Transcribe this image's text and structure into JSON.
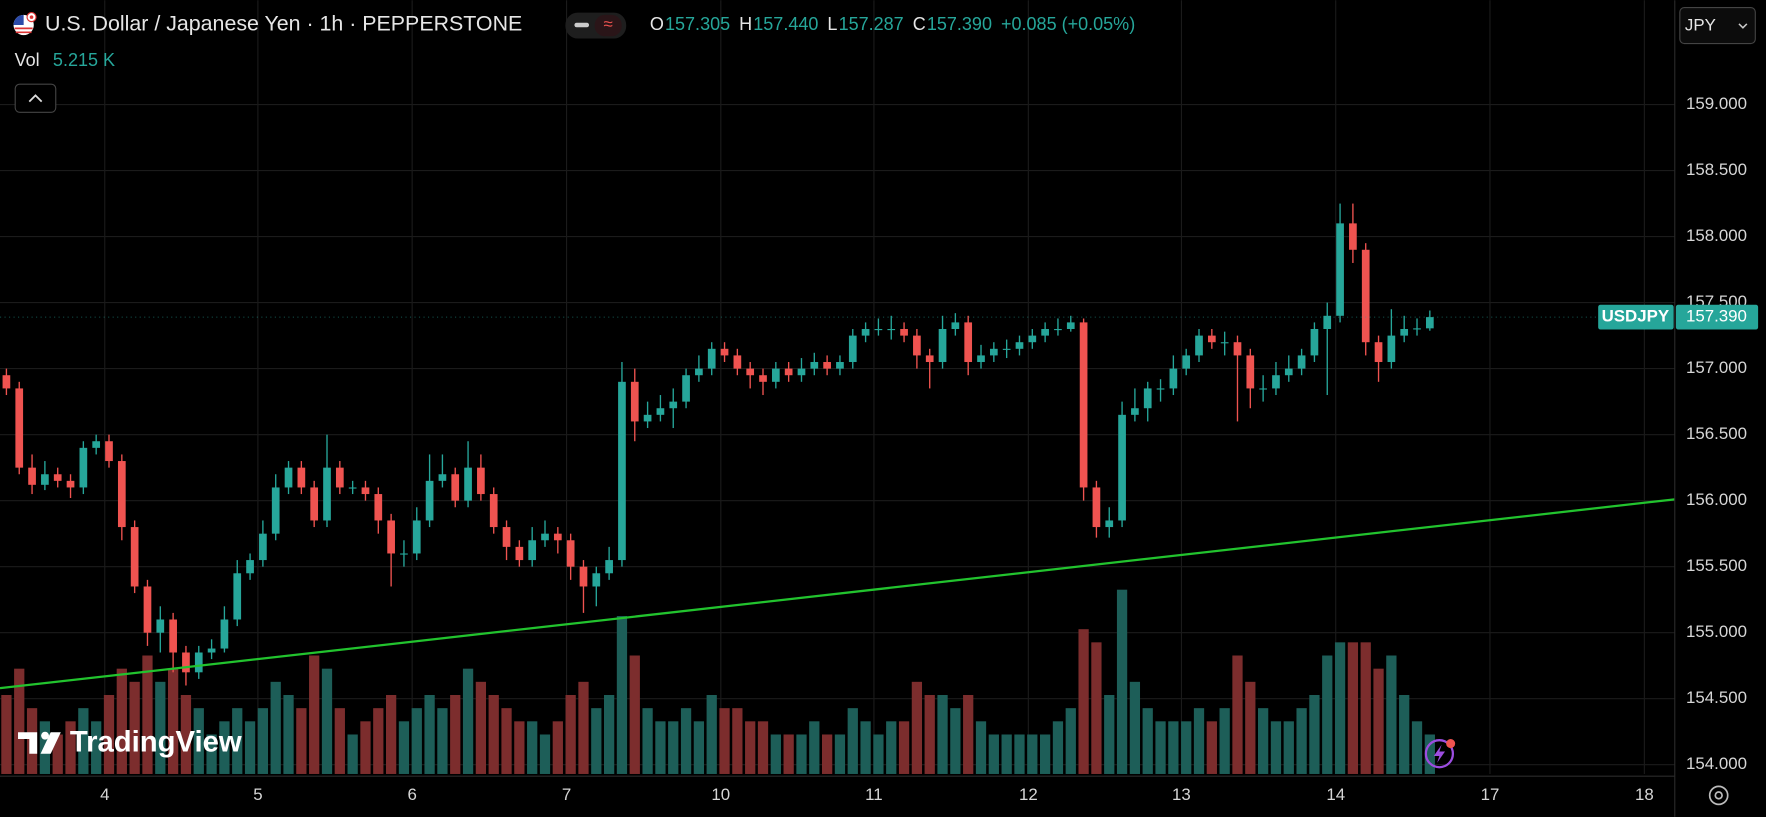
{
  "chart_data": {
    "type": "candlestick",
    "title": "U.S. Dollar / Japanese Yen · 1h · PEPPERSTONE",
    "ohlc_legend": [
      {
        "key": "O",
        "value": "157.305"
      },
      {
        "key": "H",
        "value": "157.440"
      },
      {
        "key": "L",
        "value": "157.287"
      },
      {
        "key": "C",
        "value": "157.390"
      }
    ],
    "change": "+0.085 (+0.05%)",
    "volume_label": "Vol",
    "volume_value": "5.215 K",
    "currency": "JPY",
    "symbol": "USDJPY",
    "last_price_label": "157.390",
    "brand": "TradingView",
    "up_color": "#26a69a",
    "down_color": "#ef5350",
    "volume_up_color": "#1d5e58",
    "volume_down_color": "#7c2d2d",
    "grid": true,
    "xlim": [
      0,
      130.6
    ],
    "xticks": [
      {
        "value": 8.17,
        "label": "4"
      },
      {
        "value": 20.11,
        "label": "5"
      },
      {
        "value": 32.14,
        "label": "6"
      },
      {
        "value": 44.18,
        "label": "7"
      },
      {
        "value": 56.21,
        "label": "10"
      },
      {
        "value": 68.15,
        "label": "11"
      },
      {
        "value": 80.19,
        "label": "12"
      },
      {
        "value": 92.13,
        "label": "13"
      },
      {
        "value": 104.16,
        "label": "14"
      },
      {
        "value": 116.19,
        "label": "17"
      },
      {
        "value": 128.23,
        "label": "18"
      }
    ],
    "ylim": [
      153.93,
      159.79
    ],
    "yticks": [
      {
        "value": 154,
        "label": "154.000"
      },
      {
        "value": 154.5,
        "label": "154.500"
      },
      {
        "value": 155,
        "label": "155.000"
      },
      {
        "value": 155.5,
        "label": "155.500"
      },
      {
        "value": 156,
        "label": "156.000"
      },
      {
        "value": 156.5,
        "label": "156.500"
      },
      {
        "value": 157,
        "label": "157.000"
      },
      {
        "value": 157.5,
        "label": "157.500"
      },
      {
        "value": 158,
        "label": "158.000"
      },
      {
        "value": 158.5,
        "label": "158.500"
      },
      {
        "value": 159,
        "label": "159.000"
      }
    ],
    "volume_lim": [
      0,
      16
    ],
    "trendline": {
      "color": "#22c32e",
      "x": [
        0,
        130.6
      ],
      "values": [
        154.58,
        156.01
      ]
    },
    "candles": [
      [
        156.95,
        157.0,
        156.8,
        156.85
      ],
      [
        156.85,
        156.9,
        156.2,
        156.25
      ],
      [
        156.25,
        156.35,
        156.05,
        156.12
      ],
      [
        156.12,
        156.3,
        156.08,
        156.2
      ],
      [
        156.2,
        156.25,
        156.1,
        156.15
      ],
      [
        156.15,
        156.2,
        156.02,
        156.1
      ],
      [
        156.1,
        156.45,
        156.05,
        156.4
      ],
      [
        156.4,
        156.5,
        156.35,
        156.45
      ],
      [
        156.45,
        156.5,
        156.25,
        156.3
      ],
      [
        156.3,
        156.35,
        155.7,
        155.8
      ],
      [
        155.8,
        155.85,
        155.3,
        155.35
      ],
      [
        155.35,
        155.4,
        154.9,
        155.0
      ],
      [
        155.0,
        155.2,
        154.85,
        155.1
      ],
      [
        155.1,
        155.15,
        154.7,
        154.85
      ],
      [
        154.85,
        154.9,
        154.6,
        154.7
      ],
      [
        154.7,
        154.9,
        154.65,
        154.85
      ],
      [
        154.85,
        154.95,
        154.8,
        154.88
      ],
      [
        154.88,
        155.2,
        154.85,
        155.1
      ],
      [
        155.1,
        155.55,
        155.05,
        155.45
      ],
      [
        155.45,
        155.6,
        155.4,
        155.55
      ],
      [
        155.55,
        155.85,
        155.5,
        155.75
      ],
      [
        155.75,
        156.2,
        155.7,
        156.1
      ],
      [
        156.1,
        156.3,
        156.05,
        156.25
      ],
      [
        156.25,
        156.3,
        156.05,
        156.1
      ],
      [
        156.1,
        156.15,
        155.8,
        155.85
      ],
      [
        155.85,
        156.5,
        155.8,
        156.25
      ],
      [
        156.25,
        156.3,
        156.05,
        156.1
      ],
      [
        156.1,
        156.15,
        156.05,
        156.1
      ],
      [
        156.1,
        156.15,
        156.0,
        156.05
      ],
      [
        156.05,
        156.1,
        155.75,
        155.85
      ],
      [
        155.85,
        155.9,
        155.35,
        155.6
      ],
      [
        155.6,
        155.7,
        155.5,
        155.6
      ],
      [
        155.6,
        155.95,
        155.55,
        155.85
      ],
      [
        155.85,
        156.35,
        155.8,
        156.15
      ],
      [
        156.15,
        156.35,
        156.1,
        156.2
      ],
      [
        156.2,
        156.25,
        155.95,
        156.0
      ],
      [
        156.0,
        156.45,
        155.95,
        156.25
      ],
      [
        156.25,
        156.35,
        156.0,
        156.05
      ],
      [
        156.05,
        156.1,
        155.75,
        155.8
      ],
      [
        155.8,
        155.85,
        155.55,
        155.65
      ],
      [
        155.65,
        155.7,
        155.5,
        155.55
      ],
      [
        155.55,
        155.8,
        155.5,
        155.7
      ],
      [
        155.7,
        155.85,
        155.65,
        155.75
      ],
      [
        155.75,
        155.8,
        155.6,
        155.7
      ],
      [
        155.7,
        155.75,
        155.4,
        155.5
      ],
      [
        155.5,
        155.55,
        155.15,
        155.35
      ],
      [
        155.35,
        155.5,
        155.2,
        155.45
      ],
      [
        155.45,
        155.65,
        155.4,
        155.55
      ],
      [
        155.55,
        157.05,
        155.5,
        156.9
      ],
      [
        156.9,
        157.0,
        156.45,
        156.6
      ],
      [
        156.6,
        156.75,
        156.55,
        156.65
      ],
      [
        156.65,
        156.8,
        156.6,
        156.7
      ],
      [
        156.7,
        156.85,
        156.55,
        156.75
      ],
      [
        156.75,
        157.0,
        156.7,
        156.95
      ],
      [
        156.95,
        157.1,
        156.9,
        157.0
      ],
      [
        157.0,
        157.2,
        156.95,
        157.15
      ],
      [
        157.15,
        157.2,
        157.05,
        157.1
      ],
      [
        157.1,
        157.15,
        156.95,
        157.0
      ],
      [
        157.0,
        157.05,
        156.85,
        156.95
      ],
      [
        156.95,
        157.0,
        156.8,
        156.9
      ],
      [
        156.9,
        157.05,
        156.85,
        157.0
      ],
      [
        157.0,
        157.05,
        156.9,
        156.95
      ],
      [
        156.95,
        157.08,
        156.9,
        157.0
      ],
      [
        157.0,
        157.12,
        156.95,
        157.05
      ],
      [
        157.05,
        157.1,
        156.95,
        157.0
      ],
      [
        157.0,
        157.1,
        156.95,
        157.05
      ],
      [
        157.05,
        157.3,
        157.0,
        157.25
      ],
      [
        157.25,
        157.35,
        157.2,
        157.3
      ],
      [
        157.3,
        157.38,
        157.25,
        157.3
      ],
      [
        157.3,
        157.4,
        157.22,
        157.3
      ],
      [
        157.3,
        157.35,
        157.2,
        157.25
      ],
      [
        157.25,
        157.3,
        157.0,
        157.1
      ],
      [
        157.1,
        157.15,
        156.85,
        157.05
      ],
      [
        157.05,
        157.4,
        157.0,
        157.3
      ],
      [
        157.3,
        157.42,
        157.25,
        157.35
      ],
      [
        157.35,
        157.4,
        156.95,
        157.05
      ],
      [
        157.05,
        157.18,
        157.0,
        157.1
      ],
      [
        157.1,
        157.2,
        157.05,
        157.15
      ],
      [
        157.15,
        157.22,
        157.08,
        157.15
      ],
      [
        157.15,
        157.25,
        157.1,
        157.2
      ],
      [
        157.2,
        157.3,
        157.15,
        157.25
      ],
      [
        157.25,
        157.35,
        157.2,
        157.3
      ],
      [
        157.3,
        157.38,
        157.25,
        157.3
      ],
      [
        157.3,
        157.4,
        157.28,
        157.35
      ],
      [
        157.35,
        157.38,
        156.0,
        156.1
      ],
      [
        156.1,
        156.15,
        155.72,
        155.8
      ],
      [
        155.8,
        155.95,
        155.72,
        155.85
      ],
      [
        155.85,
        156.75,
        155.8,
        156.65
      ],
      [
        156.65,
        156.85,
        156.6,
        156.7
      ],
      [
        156.7,
        156.9,
        156.6,
        156.85
      ],
      [
        156.85,
        156.92,
        156.75,
        156.85
      ],
      [
        156.85,
        157.1,
        156.8,
        157.0
      ],
      [
        157.0,
        157.15,
        156.95,
        157.1
      ],
      [
        157.1,
        157.3,
        157.05,
        157.25
      ],
      [
        157.25,
        157.3,
        157.15,
        157.2
      ],
      [
        157.2,
        157.28,
        157.1,
        157.2
      ],
      [
        157.2,
        157.25,
        156.6,
        157.1
      ],
      [
        157.1,
        157.15,
        156.7,
        156.85
      ],
      [
        156.85,
        156.95,
        156.75,
        156.85
      ],
      [
        156.85,
        157.05,
        156.8,
        156.95
      ],
      [
        156.95,
        157.1,
        156.9,
        157.0
      ],
      [
        157.0,
        157.15,
        156.95,
        157.1
      ],
      [
        157.1,
        157.35,
        157.05,
        157.3
      ],
      [
        157.3,
        157.5,
        156.8,
        157.4
      ],
      [
        157.4,
        158.25,
        157.35,
        158.1
      ],
      [
        158.1,
        158.25,
        157.8,
        157.9
      ],
      [
        157.9,
        157.95,
        157.1,
        157.2
      ],
      [
        157.2,
        157.25,
        156.9,
        157.05
      ],
      [
        157.05,
        157.45,
        157.0,
        157.25
      ],
      [
        157.25,
        157.4,
        157.2,
        157.3
      ],
      [
        157.3,
        157.38,
        157.25,
        157.305
      ],
      [
        157.305,
        157.44,
        157.287,
        157.39
      ]
    ],
    "volume": [
      6,
      8,
      5,
      4,
      3,
      4,
      5,
      4,
      6,
      8,
      7,
      9,
      7,
      8,
      6,
      5,
      3,
      4,
      5,
      4,
      5,
      7,
      6,
      5,
      9,
      8,
      5,
      3,
      4,
      5,
      6,
      4,
      5,
      6,
      5,
      6,
      8,
      7,
      6,
      5,
      4,
      4,
      3,
      4,
      6,
      7,
      5,
      6,
      12,
      9,
      5,
      4,
      4,
      5,
      4,
      6,
      5,
      5,
      4,
      4,
      3,
      3,
      3,
      4,
      3,
      3,
      5,
      4,
      3,
      4,
      4,
      7,
      6,
      6,
      5,
      6,
      4,
      3,
      3,
      3,
      3,
      3,
      4,
      5,
      11,
      10,
      6,
      14,
      7,
      5,
      4,
      4,
      4,
      5,
      4,
      5,
      9,
      7,
      5,
      4,
      4,
      5,
      6,
      9,
      10,
      10,
      10,
      8,
      9,
      6,
      4,
      3
    ]
  }
}
